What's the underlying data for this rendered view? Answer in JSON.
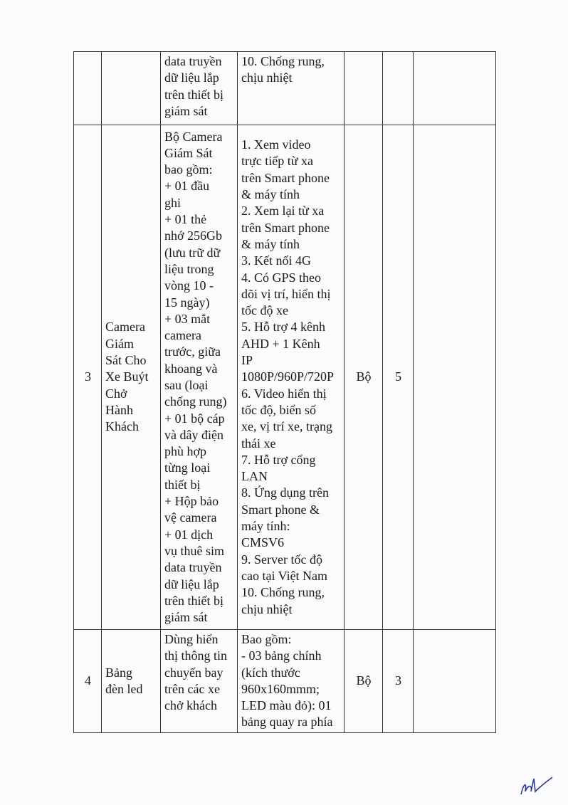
{
  "table": {
    "rows": [
      {
        "stt": "",
        "name": "",
        "desc": "data truyền\ndữ liệu lắp\ntrên thiết bị\ngiám sát",
        "spec": "10. Chống rung,\nchịu nhiệt",
        "unit": "",
        "qty": "",
        "note": ""
      },
      {
        "stt": "3",
        "name": "Camera\nGiám\nSát Cho\nXe Buýt\nChở\nHành\nKhách",
        "desc": "Bộ Camera\nGiám Sát\nbao gồm:\n+ 01 đầu\nghi\n+ 01 thẻ\nnhớ 256Gb\n(lưu trữ dữ\nliệu trong\nvòng 10 -\n15 ngày)\n+ 03 mắt\ncamera\ntrước, giữa\nkhoang và\nsau (loại\nchống rung)\n+ 01 bộ cáp\nvà dây điện\nphù hợp\ntừng loại\nthiết bị\n+ Hộp bảo\nvệ camera\n+ 01 dịch\nvụ thuê sim\ndata truyền\ndữ liệu lắp\ntrên thiết bị\ngiám sát",
        "spec": "1. Xem video\ntrực tiếp từ xa\ntrên Smart phone\n& máy tính\n2. Xem lại từ xa\ntrên Smart phone\n& máy tính\n3. Kết nối 4G\n4. Có GPS theo\ndõi vị trí, hiển thị\ntốc độ xe\n5. Hỗ trợ 4 kênh\nAHD + 1 Kênh\nIP\n1080P/960P/720P\n6. Video hiển thị\ntốc độ, biển số\nxe, vị trí xe, trạng\nthái xe\n7. Hỗ trợ cổng\nLAN\n8. Ứng dụng trên\nSmart phone &\nmáy tính:\nCMSV6\n9. Server tốc độ\ncao tại Việt Nam\n10. Chống rung,\nchịu nhiệt",
        "unit": "Bộ",
        "qty": "5",
        "note": ""
      },
      {
        "stt": "4",
        "name": "Bảng\nđèn led",
        "desc": "Dùng hiển\nthị thông tin\nchuyến bay\ntrên các xe\nchở khách",
        "spec": "Bao gồm:\n- 03 bảng chính\n(kích thước\n960x160mmm;\nLED màu đỏ): 01\nbảng quay ra phía",
        "unit": "Bộ",
        "qty": "3",
        "note": ""
      }
    ]
  },
  "colors": {
    "ink": "#1a1a1a",
    "border": "#333333",
    "paper": "#fbfbfd",
    "signature": "#2a3a9a"
  },
  "signature_icon": "handwritten-initials"
}
